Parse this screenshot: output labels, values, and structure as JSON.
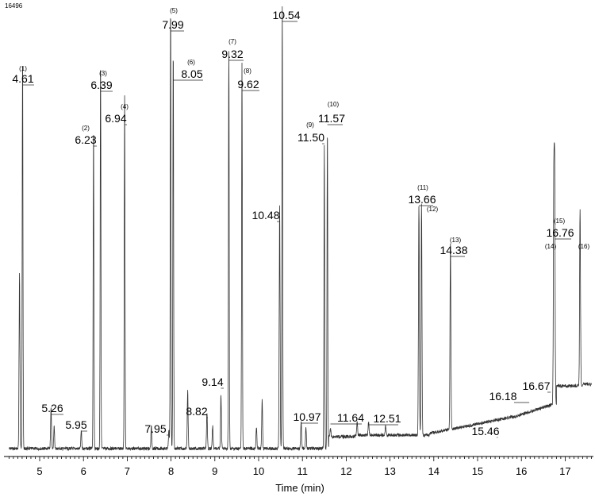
{
  "figure_id": "16496",
  "chart_data": {
    "type": "line",
    "title": "",
    "xlabel": "Time (min)",
    "ylabel": "",
    "xlim": [
      4.3,
      17.6
    ],
    "ylim": [
      0,
      100
    ],
    "xticks": [
      "5",
      "6",
      "7",
      "8",
      "9",
      "10",
      "11",
      "12",
      "13",
      "14",
      "15",
      "16",
      "17"
    ],
    "grid": false,
    "peaks": [
      {
        "rt": 4.61,
        "height": 89,
        "label": "4.61",
        "id": "(1)"
      },
      {
        "rt": 4.54,
        "height": 40
      },
      {
        "rt": 5.26,
        "height": 9,
        "label": "5.26"
      },
      {
        "rt": 5.33,
        "height": 5
      },
      {
        "rt": 5.95,
        "height": 4,
        "label": "5.95"
      },
      {
        "rt": 6.23,
        "height": 73,
        "label": "6.23",
        "id": "(2)"
      },
      {
        "rt": 6.39,
        "height": 88,
        "label": "6.39",
        "id": "(3)"
      },
      {
        "rt": 6.94,
        "height": 80,
        "label": "6.94",
        "id": "(4)"
      },
      {
        "rt": 7.55,
        "height": 5
      },
      {
        "rt": 7.95,
        "height": 4,
        "label": "7.95"
      },
      {
        "rt": 7.99,
        "height": 100,
        "label": "7.99",
        "id": "(5)"
      },
      {
        "rt": 8.05,
        "height": 90,
        "label": "8.05",
        "id": "(6)"
      },
      {
        "rt": 8.38,
        "height": 13
      },
      {
        "rt": 8.82,
        "height": 8,
        "label": "8.82"
      },
      {
        "rt": 8.95,
        "height": 5
      },
      {
        "rt": 9.14,
        "height": 12,
        "label": "9.14"
      },
      {
        "rt": 9.32,
        "height": 90,
        "label": "9.32",
        "id": "(7)"
      },
      {
        "rt": 9.62,
        "height": 87,
        "label": "9.62",
        "id": "(8)"
      },
      {
        "rt": 9.95,
        "height": 5
      },
      {
        "rt": 10.08,
        "height": 11
      },
      {
        "rt": 10.48,
        "height": 55,
        "label": "10.48"
      },
      {
        "rt": 10.54,
        "height": 100,
        "label": "10.54"
      },
      {
        "rt": 10.97,
        "height": 6,
        "label": "10.97"
      },
      {
        "rt": 11.08,
        "height": 5
      },
      {
        "rt": 11.5,
        "height": 69,
        "label": "11.50",
        "id": "(9)"
      },
      {
        "rt": 11.57,
        "height": 72,
        "label": "11.57",
        "id": "(10)"
      },
      {
        "rt": 11.64,
        "height": 2,
        "label": "11.64"
      },
      {
        "rt": 12.25,
        "height": 3
      },
      {
        "rt": 12.51,
        "height": 3,
        "label": "12.51"
      },
      {
        "rt": 12.9,
        "height": 2
      },
      {
        "rt": 13.66,
        "height": 52,
        "label": "13.66",
        "id": "(11)"
      },
      {
        "rt": 13.72,
        "height": 52,
        "id": "(12)"
      },
      {
        "rt": 14.38,
        "height": 42,
        "label": "14.38",
        "id": "(13)"
      },
      {
        "rt": 15.46,
        "height": 0,
        "label": "15.46"
      },
      {
        "rt": 16.18,
        "height": 0,
        "label": "16.18"
      },
      {
        "rt": 16.67,
        "height": 0,
        "label": "16.67"
      },
      {
        "rt": 16.74,
        "height": 48,
        "id": "(14)"
      },
      {
        "rt": 16.76,
        "height": 50,
        "label": "16.76",
        "id": "(15)"
      },
      {
        "rt": 17.34,
        "height": 40,
        "id": "(16)"
      }
    ]
  }
}
